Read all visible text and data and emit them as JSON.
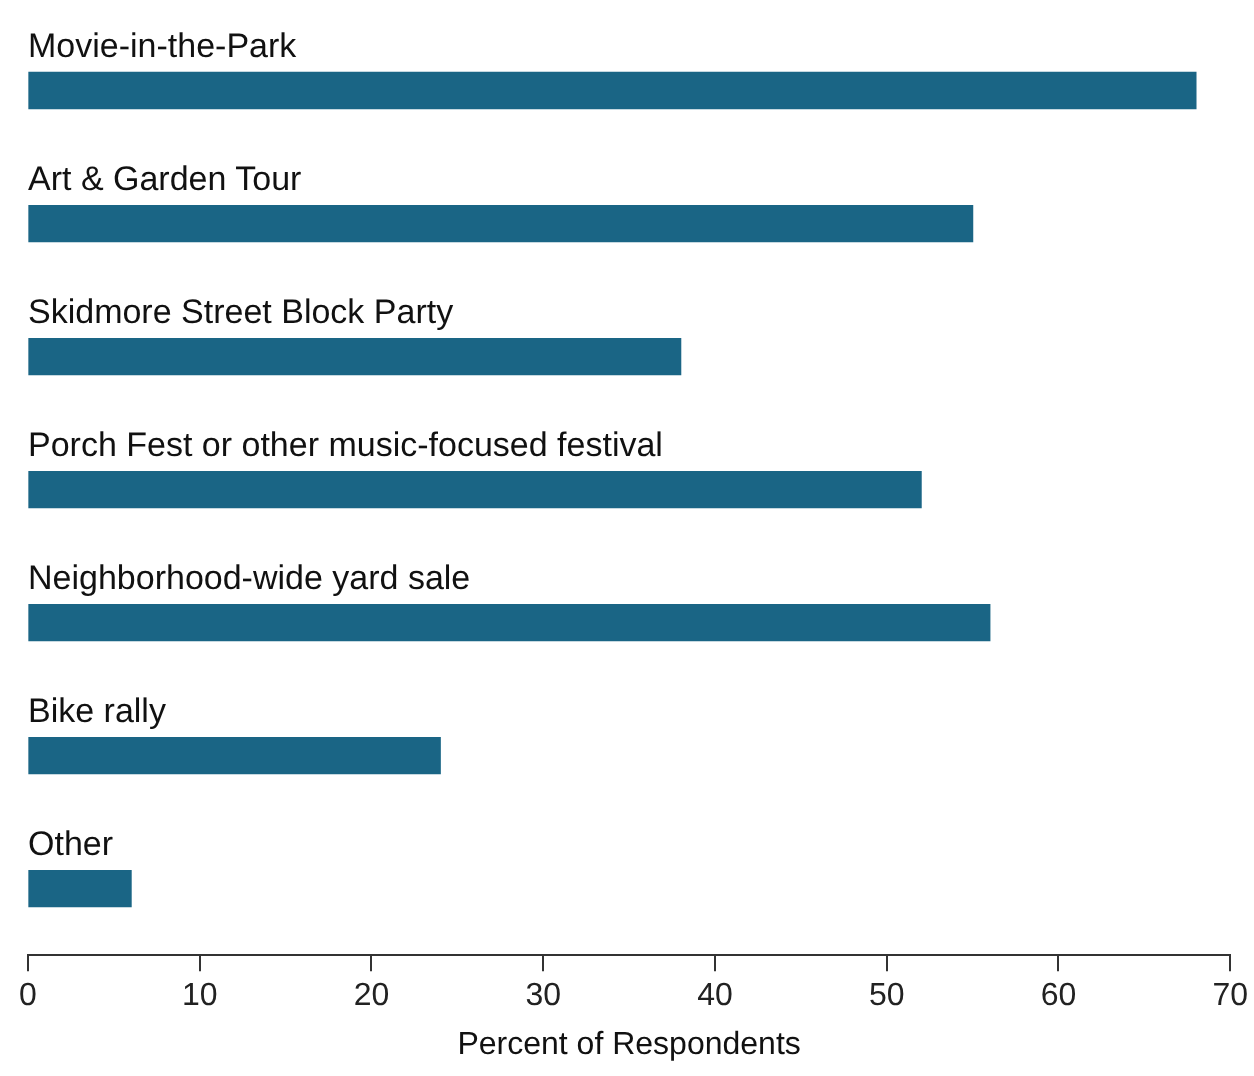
{
  "chart_data": {
    "type": "bar",
    "orientation": "horizontal",
    "xlabel": "Percent of Respondents",
    "categories": [
      "Movie-in-the-Park",
      "Art & Garden Tour",
      "Skidmore Street Block Party",
      "Porch Fest or other music-focused festival",
      "Neighborhood-wide yard sale",
      "Bike rally",
      "Other"
    ],
    "values": [
      68,
      55,
      38,
      52,
      56,
      24,
      6
    ],
    "color": "#1a6585",
    "xlim": [
      0,
      70
    ],
    "xticks": [
      0,
      10,
      20,
      30,
      40,
      50,
      60,
      70
    ],
    "grid": false,
    "legend": false
  }
}
